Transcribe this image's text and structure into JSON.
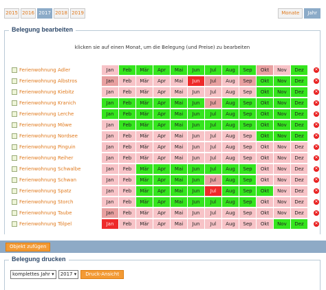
{
  "years": [
    {
      "label": "2015",
      "active": false
    },
    {
      "label": "2016",
      "active": false
    },
    {
      "label": "2017",
      "active": true
    },
    {
      "label": "2018",
      "active": false
    },
    {
      "label": "2019",
      "active": false
    }
  ],
  "view_tabs": [
    {
      "label": "Monate",
      "active": false
    },
    {
      "label": "Jahr",
      "active": true
    }
  ],
  "edit_section": {
    "title": "Belegung bearbeiten",
    "hint": "klicken sie auf einen Monat, um die Belegung (und Preise) zu bearbeiten"
  },
  "months": [
    "Jan",
    "Feb",
    "Mär",
    "Apr",
    "Mai",
    "Jun",
    "Jul",
    "Aug",
    "Sep",
    "Okt",
    "Nov",
    "Dez"
  ],
  "status_colors": {
    "frei": "#35e51e",
    "teil": "#f7c3c7",
    "belegt": "#e8a0a0",
    "voll": "#ee2a2a",
    "off": "#f9dada"
  },
  "objects": [
    {
      "name": "Ferienwohnung Adler",
      "status": [
        "teil",
        "frei",
        "frei",
        "frei",
        "frei",
        "frei",
        "frei",
        "frei",
        "frei",
        "belegt",
        "teil",
        "frei"
      ]
    },
    {
      "name": "Ferienwohnung Albstros",
      "status": [
        "belegt",
        "teil",
        "teil",
        "teil",
        "teil",
        "voll",
        "belegt",
        "teil",
        "belegt",
        "frei",
        "frei",
        "frei"
      ]
    },
    {
      "name": "Ferienwohnung Kiebitz",
      "status": [
        "teil",
        "teil",
        "teil",
        "teil",
        "teil",
        "teil",
        "teil",
        "teil",
        "teil",
        "frei",
        "frei",
        "frei"
      ]
    },
    {
      "name": "Ferienwohnung Kranich",
      "status": [
        "frei",
        "frei",
        "frei",
        "frei",
        "frei",
        "frei",
        "belegt",
        "frei",
        "frei",
        "frei",
        "frei",
        "frei"
      ]
    },
    {
      "name": "Ferienwohnung Lerche",
      "status": [
        "frei",
        "frei",
        "frei",
        "frei",
        "frei",
        "frei",
        "frei",
        "frei",
        "frei",
        "frei",
        "frei",
        "frei"
      ]
    },
    {
      "name": "Ferienwohnung Möwe",
      "status": [
        "teil",
        "frei",
        "frei",
        "frei",
        "frei",
        "frei",
        "frei",
        "frei",
        "frei",
        "frei",
        "frei",
        "frei"
      ]
    },
    {
      "name": "Ferienwohnung Nordsee",
      "status": [
        "teil",
        "teil",
        "teil",
        "teil",
        "teil",
        "teil",
        "teil",
        "teil",
        "teil",
        "frei",
        "frei",
        "frei"
      ]
    },
    {
      "name": "Ferienwohnung Pinguin",
      "status": [
        "teil",
        "teil",
        "teil",
        "teil",
        "teil",
        "teil",
        "teil",
        "teil",
        "teil",
        "teil",
        "teil",
        "teil"
      ]
    },
    {
      "name": "Ferienwohnung Reiher",
      "status": [
        "teil",
        "teil",
        "teil",
        "teil",
        "teil",
        "teil",
        "teil",
        "teil",
        "teil",
        "teil",
        "teil",
        "teil"
      ]
    },
    {
      "name": "Ferienwohnung Schwalbe",
      "status": [
        "teil",
        "teil",
        "frei",
        "frei",
        "frei",
        "frei",
        "frei",
        "frei",
        "frei",
        "teil",
        "teil",
        "teil"
      ]
    },
    {
      "name": "Ferienwohnung Schwan",
      "status": [
        "teil",
        "teil",
        "frei",
        "frei",
        "frei",
        "frei",
        "belegt",
        "frei",
        "frei",
        "teil",
        "teil",
        "teil"
      ]
    },
    {
      "name": "Ferienwohnung Spatz",
      "status": [
        "teil",
        "teil",
        "frei",
        "frei",
        "frei",
        "frei",
        "voll",
        "frei",
        "frei",
        "frei",
        "teil",
        "teil"
      ]
    },
    {
      "name": "Ferienwohnung Storch",
      "status": [
        "teil",
        "teil",
        "frei",
        "frei",
        "frei",
        "frei",
        "frei",
        "frei",
        "frei",
        "teil",
        "teil",
        "teil"
      ]
    },
    {
      "name": "Ferienwohnung Taube",
      "status": [
        "belegt",
        "teil",
        "teil",
        "teil",
        "teil",
        "teil",
        "teil",
        "teil",
        "teil",
        "teil",
        "teil",
        "teil"
      ]
    },
    {
      "name": "Ferienwohnung Tölpel",
      "status": [
        "voll",
        "teil",
        "teil",
        "teil",
        "teil",
        "teil",
        "teil",
        "teil",
        "teil",
        "teil",
        "frei",
        "frei"
      ]
    }
  ],
  "add_object_label": "Objekt zufügen",
  "print_section": {
    "title": "Belegung drucken",
    "range_value": "komplettes Jahr",
    "year_value": "2017",
    "button_label": "Druck-Ansicht"
  }
}
